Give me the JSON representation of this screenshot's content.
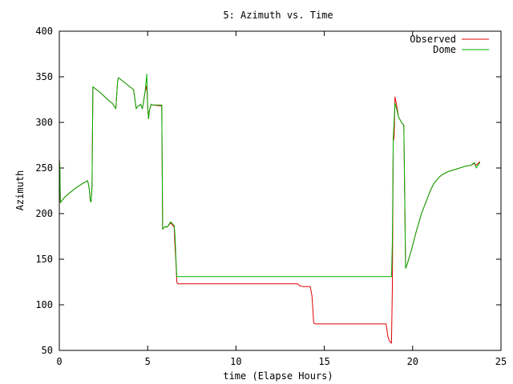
{
  "chart_data": {
    "type": "line",
    "title": "5: Azimuth vs. Time",
    "xlabel": "time (Elapse Hours)",
    "ylabel": "Azimuth",
    "xlim": [
      0,
      25
    ],
    "ylim": [
      50,
      400
    ],
    "xticks": [
      0,
      5,
      10,
      15,
      20,
      25
    ],
    "yticks": [
      50,
      100,
      150,
      200,
      250,
      300,
      350,
      400
    ],
    "grid": false,
    "legend_position": "top-right",
    "series": [
      {
        "name": "Observed",
        "color": "#e00000",
        "x": [
          0,
          0.03,
          0.06,
          0.1,
          0.3,
          0.6,
          1.0,
          1.4,
          1.6,
          1.65,
          1.7,
          1.75,
          1.8,
          1.85,
          1.9,
          2.3,
          2.8,
          3.0,
          3.1,
          3.2,
          3.3,
          3.35,
          4.2,
          4.3,
          4.35,
          4.45,
          4.5,
          4.6,
          4.7,
          4.85,
          4.95,
          5.0,
          5.05,
          5.1,
          5.2,
          5.3,
          5.8,
          5.85,
          5.9,
          6.0,
          6.1,
          6.3,
          6.5,
          6.55,
          6.6,
          6.65,
          6.7,
          7.0,
          9.0,
          11.0,
          12.0,
          13.5,
          13.6,
          13.8,
          14.2,
          14.3,
          14.4,
          14.5,
          15.0,
          17.0,
          18.5,
          18.6,
          18.7,
          18.8,
          18.85,
          18.9,
          18.95,
          19.0,
          19.1,
          19.2,
          19.4,
          19.5,
          19.6,
          19.7,
          19.9,
          20.2,
          20.5,
          20.8,
          21.0,
          21.2,
          21.5,
          21.7,
          22.0,
          22.5,
          23.0,
          23.3,
          23.5,
          23.6,
          23.8
        ],
        "y": [
          260,
          250,
          212,
          213,
          218,
          223,
          229,
          234,
          236,
          232,
          226,
          214,
          213,
          230,
          339,
          333,
          324,
          321,
          318,
          315,
          345,
          349,
          336,
          322,
          315,
          318,
          318,
          320,
          315,
          333,
          340,
          318,
          304,
          313,
          320,
          319,
          318,
          183,
          184,
          186,
          185,
          190,
          185,
          162,
          147,
          125,
          123,
          123,
          123,
          123,
          123,
          123,
          121,
          120,
          120,
          110,
          80,
          79,
          79,
          79,
          79,
          65,
          60,
          58,
          120,
          280,
          283,
          328,
          318,
          306,
          299,
          297,
          140,
          145,
          158,
          180,
          200,
          215,
          225,
          233,
          240,
          243,
          246,
          249,
          252,
          253,
          255,
          253,
          257
        ]
      },
      {
        "name": "Dome",
        "color": "#00b000",
        "x": [
          0,
          0.03,
          0.06,
          0.1,
          0.3,
          0.6,
          1.0,
          1.4,
          1.6,
          1.65,
          1.7,
          1.75,
          1.8,
          1.85,
          1.9,
          2.3,
          2.8,
          3.0,
          3.1,
          3.2,
          3.3,
          3.35,
          4.2,
          4.3,
          4.35,
          4.45,
          4.5,
          4.6,
          4.7,
          4.85,
          4.95,
          5.0,
          5.05,
          5.1,
          5.2,
          5.3,
          5.8,
          5.85,
          5.9,
          6.0,
          6.1,
          6.3,
          6.5,
          6.55,
          6.6,
          6.65,
          6.7,
          7.0,
          10.0,
          14.0,
          18.0,
          18.8,
          18.85,
          18.9,
          19.0,
          19.1,
          19.2,
          19.4,
          19.5,
          19.6,
          19.7,
          19.9,
          20.2,
          20.5,
          20.8,
          21.0,
          21.2,
          21.5,
          21.7,
          22.0,
          22.5,
          23.0,
          23.3,
          23.5,
          23.6,
          23.8
        ],
        "y": [
          260,
          250,
          212,
          213,
          218,
          223,
          229,
          234,
          236,
          232,
          226,
          214,
          213,
          230,
          339,
          333,
          324,
          321,
          318,
          315,
          345,
          349,
          336,
          322,
          315,
          318,
          318,
          320,
          315,
          333,
          353,
          318,
          304,
          313,
          320,
          319,
          319,
          183,
          184,
          186,
          185,
          191,
          187,
          175,
          150,
          131,
          131,
          131,
          131,
          131,
          131,
          131,
          170,
          283,
          321,
          314,
          306,
          299,
          297,
          140,
          145,
          158,
          180,
          200,
          215,
          225,
          233,
          240,
          243,
          246,
          249,
          252,
          253,
          256,
          250,
          256
        ]
      }
    ]
  }
}
